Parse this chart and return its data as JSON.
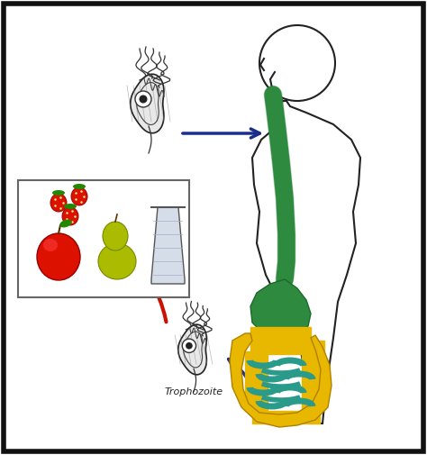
{
  "bg_color": "#ffffff",
  "border_color": "#111111",
  "blue_arrow_color": "#1a2e8a",
  "red_arrow_color": "#cc1100",
  "label_trophozoite": "Trophozoite",
  "label_fontsize": 8,
  "green_organ_color": "#2d8a3e",
  "yellow_organ_color": "#e8b800",
  "teal_organ_color": "#2a9a8a",
  "body_outline_color": "#222222",
  "figsize": [
    4.74,
    5.05
  ],
  "dpi": 100
}
